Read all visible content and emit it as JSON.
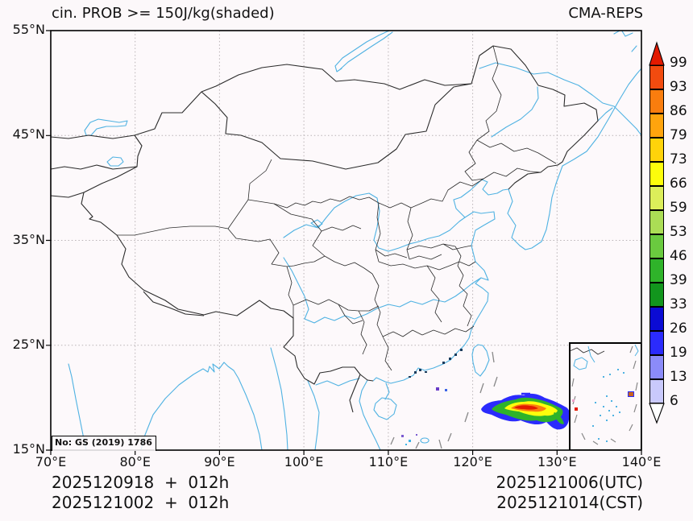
{
  "header": {
    "title": "cin. PROB >= 150J/kg(shaded)",
    "model": "CMA-REPS"
  },
  "axes": {
    "x_ticks": [
      "70°E",
      "80°E",
      "90°E",
      "100°E",
      "110°E",
      "120°E",
      "130°E",
      "140°E"
    ],
    "y_ticks": [
      "55°N",
      "45°N",
      "35°N",
      "25°N",
      "15°N"
    ]
  },
  "colorbar": {
    "levels_top_to_bottom": [
      "99",
      "93",
      "86",
      "79",
      "73",
      "66",
      "59",
      "53",
      "46",
      "39",
      "33",
      "26",
      "19",
      "13",
      "6"
    ],
    "colors_top_to_bottom": [
      "#f24b0f",
      "#fa7d0e",
      "#ffa40d",
      "#ffd30a",
      "#fdfd0c",
      "#dcee5a",
      "#abdd55",
      "#6aca3f",
      "#2fb32a",
      "#12951d",
      "#0b0bd4",
      "#2b2bfd",
      "#8b8bf9",
      "#c9c9fc"
    ],
    "over_color": "#e31a00",
    "under_color": "#ffffff"
  },
  "footer": {
    "init_utc": "2025120918  +  012h",
    "init_cst": "2025121002  +  012h",
    "valid_utc": "2025121006(UTC)",
    "valid_cst": "2025121014(CST)"
  },
  "map": {
    "license_label": "No: GS (2019) 1786",
    "coast_color": "#4fb2e2",
    "border_color": "#2b2b2b",
    "grid_color": "#b8b2b5",
    "plume_colors": [
      "#2b2bfd",
      "#2fb32a",
      "#fdfd0c",
      "#fa7d0e",
      "#e31a00"
    ]
  }
}
